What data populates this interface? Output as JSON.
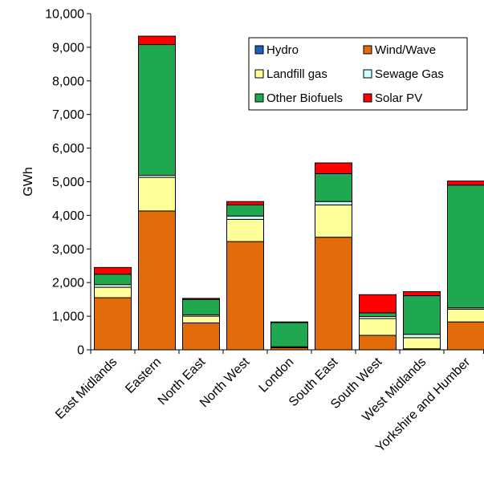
{
  "chart_data": {
    "type": "bar",
    "stacked": true,
    "ylabel": "GWh",
    "ylim": [
      0,
      10000
    ],
    "yticks": [
      "0",
      "1,000",
      "2,000",
      "3,000",
      "4,000",
      "5,000",
      "6,000",
      "7,000",
      "8,000",
      "9,000",
      "10,000"
    ],
    "categories": [
      "East Midlands",
      "Eastern",
      "North East",
      "North West",
      "London",
      "South East",
      "South West",
      "West Midlands",
      "Yorkshire and Humber"
    ],
    "series": [
      {
        "name": "Hydro",
        "color": "#1f5fbf",
        "values": [
          0,
          0,
          0,
          0,
          0,
          0,
          0,
          0,
          0
        ]
      },
      {
        "name": "Wind/Wave",
        "color": "#e36c0a",
        "values": [
          1550,
          4130,
          800,
          3220,
          60,
          3350,
          430,
          30,
          830
        ]
      },
      {
        "name": "Landfill gas",
        "color": "#ffff99",
        "values": [
          310,
          1000,
          200,
          660,
          20,
          960,
          500,
          330,
          380
        ]
      },
      {
        "name": "Sewage Gas",
        "color": "#ccffff",
        "values": [
          80,
          60,
          40,
          100,
          10,
          100,
          60,
          100,
          40
        ]
      },
      {
        "name": "Other Biofuels",
        "color": "#1fa84f",
        "values": [
          310,
          3890,
          460,
          330,
          720,
          830,
          110,
          1150,
          3650
        ]
      },
      {
        "name": "Solar PV",
        "color": "#ff0000",
        "values": [
          200,
          250,
          30,
          100,
          20,
          320,
          540,
          120,
          120
        ]
      }
    ],
    "legend": {
      "placement": "top-right",
      "order": [
        "Hydro",
        "Wind/Wave",
        "Landfill gas",
        "Sewage Gas",
        "Other Biofuels",
        "Solar PV"
      ]
    },
    "grid": false
  }
}
